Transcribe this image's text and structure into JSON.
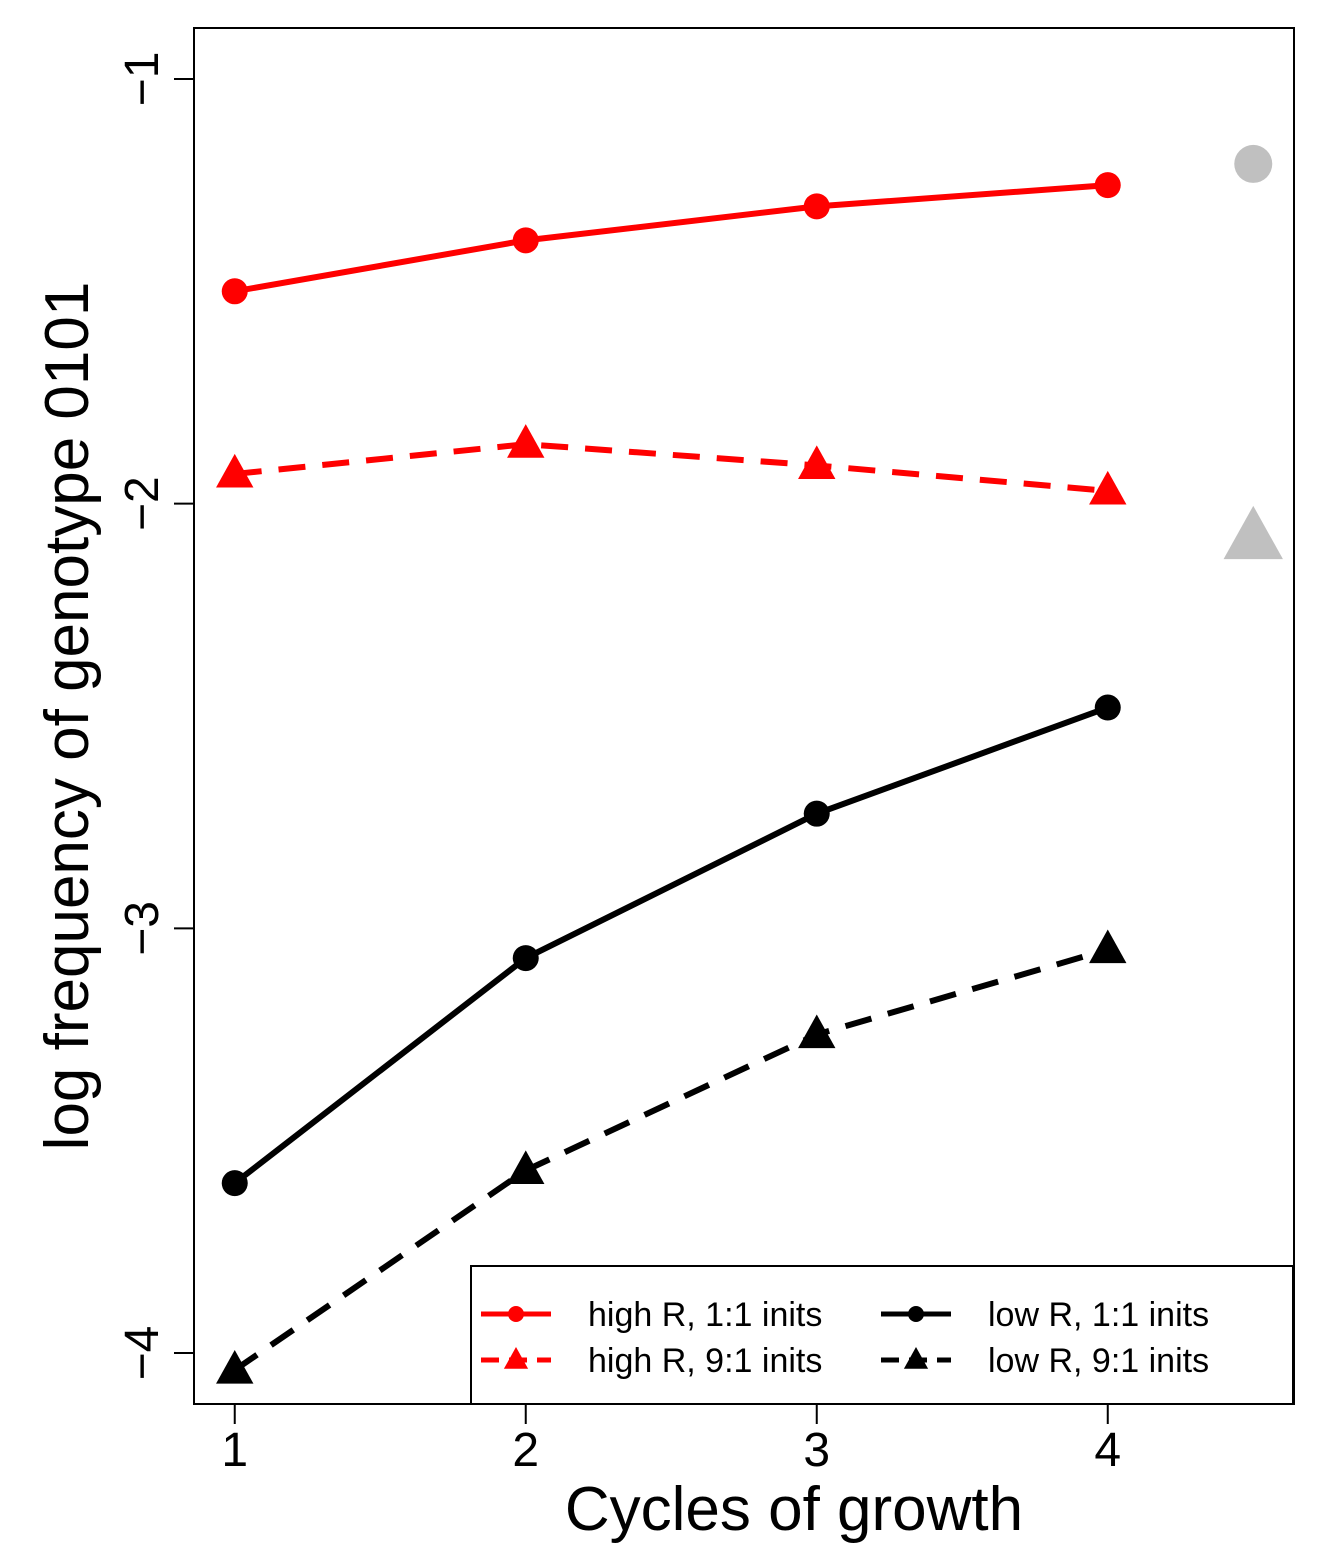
{
  "chart_data": {
    "type": "line",
    "xlabel": "Cycles of growth",
    "ylabel": "log frequency of genotype 0101",
    "xlim": [
      0.86,
      4.64
    ],
    "ylim": [
      -4.12,
      -0.88
    ],
    "x_ticks": [
      "1",
      "2",
      "3",
      "4"
    ],
    "y_ticks": [
      "−4",
      "−3",
      "−2",
      "−1"
    ],
    "grid": false,
    "legend_position": "bottom-right",
    "series": [
      {
        "name": "high R, 1:1 inits",
        "color": "#ff0000",
        "line": "solid",
        "marker": "circle",
        "x": [
          1,
          2,
          3,
          4
        ],
        "y": [
          -1.5,
          -1.38,
          -1.3,
          -1.25
        ]
      },
      {
        "name": "high R, 9:1 inits",
        "color": "#ff0000",
        "line": "dashed",
        "marker": "triangle",
        "x": [
          1,
          2,
          3,
          4
        ],
        "y": [
          -1.93,
          -1.86,
          -1.91,
          -1.97
        ]
      },
      {
        "name": "low R, 1:1 inits",
        "color": "#000000",
        "line": "solid",
        "marker": "circle",
        "x": [
          1,
          2,
          3,
          4
        ],
        "y": [
          -3.6,
          -3.07,
          -2.73,
          -2.48
        ]
      },
      {
        "name": "low R, 9:1 inits",
        "color": "#000000",
        "line": "dashed",
        "marker": "triangle",
        "x": [
          1,
          2,
          3,
          4
        ],
        "y": [
          -4.04,
          -3.57,
          -3.25,
          -3.05
        ]
      }
    ],
    "extra_points": [
      {
        "marker": "circle",
        "color": "#c0c0c0",
        "x": 4.5,
        "y": -1.2
      },
      {
        "marker": "triangle",
        "color": "#c0c0c0",
        "x": 4.5,
        "y": -2.08
      }
    ],
    "legend_order": [
      0,
      2,
      1,
      3
    ]
  }
}
